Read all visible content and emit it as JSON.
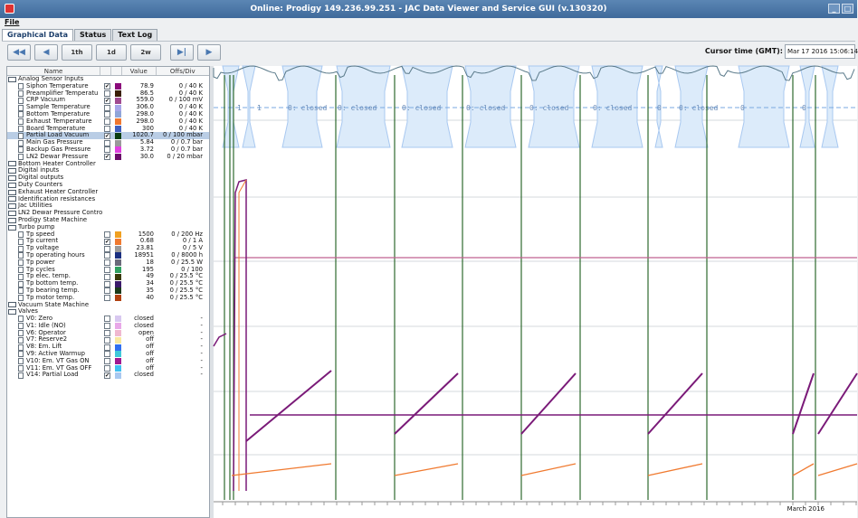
{
  "window": {
    "title": "Online: Prodigy 149.236.99.251 - JAC Data Viewer and Service GUI (v.130320)"
  },
  "menu": {
    "file": "File"
  },
  "tabs": [
    "Graphical Data",
    "Status",
    "Text Log"
  ],
  "toolbar": {
    "buttons": [
      "◀◀",
      "◀",
      "1th",
      "1d",
      "2w",
      "▶|",
      "▶"
    ],
    "cursor_label": "Cursor time (GMT):",
    "cursor_value": "Mar 17 2016 15:06:14"
  },
  "table": {
    "headers": [
      "Name",
      "Value",
      "Offs/Div"
    ],
    "groups": [
      {
        "name": "Analog Sensor Inputs",
        "items": [
          {
            "name": "Siphon Temperature",
            "checked": true,
            "color": "#8b0a7a",
            "value": "78.9",
            "offs": "0 / 40 K"
          },
          {
            "name": "Preamplifier Temperatu",
            "checked": false,
            "color": "#3a1f05",
            "value": "86.5",
            "offs": "0 / 40 K"
          },
          {
            "name": "CRP Vacuum",
            "checked": true,
            "color": "#a04a90",
            "value": "559.0",
            "offs": "0 / 100 mV"
          },
          {
            "name": "Sample Temperature",
            "checked": false,
            "color": "#a7a6e8",
            "value": "306.0",
            "offs": "0 / 40 K"
          },
          {
            "name": "Bottom Temperature",
            "checked": false,
            "color": "#8fa5d8",
            "value": "298.0",
            "offs": "0 / 40 K"
          },
          {
            "name": "Exhaust Temperature",
            "checked": false,
            "color": "#f07830",
            "value": "298.0",
            "offs": "0 / 40 K"
          },
          {
            "name": "Board Temperature",
            "checked": false,
            "color": "#4060c0",
            "value": "300",
            "offs": "0 / 40 K"
          },
          {
            "name": "Partial Load Vacuum",
            "checked": true,
            "color": "#0a3d10",
            "value": "1020.7",
            "offs": "0 / 100 mbar",
            "selected": true
          },
          {
            "name": "Main Gas Pressure",
            "checked": false,
            "color": "#9a9a9a",
            "value": "5.84",
            "offs": "0 / 0.7 bar"
          },
          {
            "name": "Backup Gas Pressure",
            "checked": false,
            "color": "#e040e0",
            "value": "3.72",
            "offs": "0 / 0.7 bar"
          },
          {
            "name": "LN2 Dewar Pressure",
            "checked": true,
            "color": "#6a0a6a",
            "value": "30.0",
            "offs": "0 / 20 mbar"
          }
        ]
      },
      {
        "name": "Bottom Heater Controller",
        "items": []
      },
      {
        "name": "Digital inputs",
        "items": []
      },
      {
        "name": "Digital outputs",
        "items": []
      },
      {
        "name": "Duty Counters",
        "items": []
      },
      {
        "name": "Exhaust Heater Controller",
        "items": []
      },
      {
        "name": "Identification resistances",
        "items": []
      },
      {
        "name": "Jac Utilities",
        "items": []
      },
      {
        "name": "LN2 Dewar Pressure Contro",
        "items": []
      },
      {
        "name": "Prodigy State Machine",
        "items": []
      },
      {
        "name": "Turbo pump",
        "items": [
          {
            "name": "Tp speed",
            "checked": false,
            "color": "#f0a020",
            "value": "1500",
            "offs": "0 / 200 Hz"
          },
          {
            "name": "Tp current",
            "checked": true,
            "color": "#f07a30",
            "value": "0.68",
            "offs": "0 / 1 A"
          },
          {
            "name": "Tp voltage",
            "checked": false,
            "color": "#9a9a9a",
            "value": "23.81",
            "offs": "0 / 5 V"
          },
          {
            "name": "Tp operating hours",
            "checked": false,
            "color": "#1a2f80",
            "value": "18951",
            "offs": "0 / 8000 h"
          },
          {
            "name": "Tp power",
            "checked": false,
            "color": "#6a6a7a",
            "value": "18",
            "offs": "0 / 25.5 W"
          },
          {
            "name": "Tp cycles",
            "checked": false,
            "color": "#30a060",
            "value": "195",
            "offs": "0 / 100"
          },
          {
            "name": "Tp elec. temp.",
            "checked": false,
            "color": "#3a3a0a",
            "value": "49",
            "offs": "0 / 25.5 °C"
          },
          {
            "name": "Tp bottom temp.",
            "checked": false,
            "color": "#3a1a6a",
            "value": "34",
            "offs": "0 / 25.5 °C"
          },
          {
            "name": "Tp bearing temp.",
            "checked": false,
            "color": "#1a3a1a",
            "value": "35",
            "offs": "0 / 25.5 °C"
          },
          {
            "name": "Tp motor temp.",
            "checked": false,
            "color": "#b04010",
            "value": "40",
            "offs": "0 / 25.5 °C"
          }
        ]
      },
      {
        "name": "Vacuum State Machine",
        "items": []
      },
      {
        "name": "Valves",
        "items": [
          {
            "name": "V0: Zero",
            "checked": false,
            "color": "#d8c8f0",
            "value": "closed",
            "offs": "-"
          },
          {
            "name": "V1: Idle (NO)",
            "checked": false,
            "color": "#e8a8e8",
            "value": "closed",
            "offs": "-"
          },
          {
            "name": "V6: Operator",
            "checked": false,
            "color": "#f0b8d0",
            "value": "open",
            "offs": "-"
          },
          {
            "name": "V7: Reserve2",
            "checked": false,
            "color": "#f8e8a0",
            "value": "off",
            "offs": "-"
          },
          {
            "name": "V8: Em. Lift",
            "checked": false,
            "color": "#3070f0",
            "value": "off",
            "offs": "-"
          },
          {
            "name": "V9: Active Warmup",
            "checked": false,
            "color": "#40c8d8",
            "value": "off",
            "offs": "-"
          },
          {
            "name": "V10: Em. VT Gas ON",
            "checked": false,
            "color": "#a01890",
            "value": "off",
            "offs": "-"
          },
          {
            "name": "V11: Em. VT Gas OFF",
            "checked": false,
            "color": "#40c0f0",
            "value": "off",
            "offs": "-"
          },
          {
            "name": "V14: Partial Load",
            "checked": true,
            "color": "#a8c8f0",
            "value": "closed",
            "offs": "-"
          }
        ]
      }
    ]
  },
  "plot": {
    "valve_labels": [
      "1",
      "1",
      "0: closed",
      "0: closed",
      "0: closed",
      "0: closed",
      "0: closed",
      "0: closed",
      "0",
      "0: closed",
      "0",
      "0"
    ],
    "x_axis_label": "March 2016"
  },
  "colors": {
    "valve_band": "#a8c8f0",
    "purple_series": "#7a1a78",
    "orange_series": "#f07a30",
    "pink_series": "#c06090",
    "green_series": "#0a3d10",
    "gray_series": "#5a7a8a"
  }
}
